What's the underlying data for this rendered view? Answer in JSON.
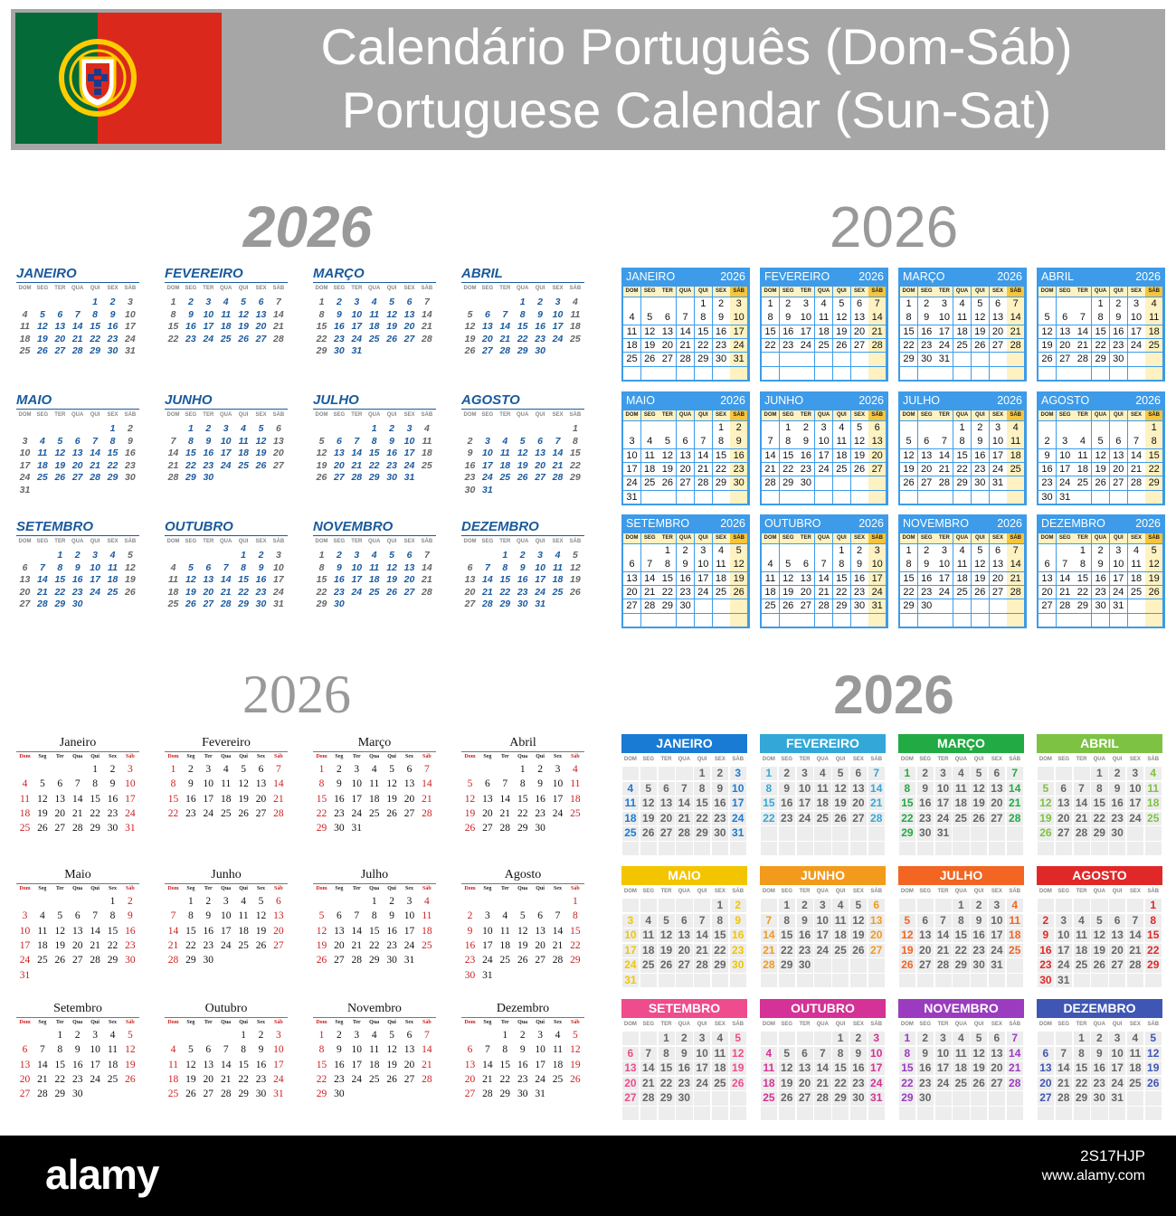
{
  "header": {
    "title_pt": "Calendário Português (Dom-Sáb)",
    "title_en": "Portuguese Calendar (Sun-Sat)"
  },
  "year": "2026",
  "colors": {
    "header_bg": "#a6a6a6",
    "flag_green": "#046a38",
    "flag_red": "#da291c",
    "blue": "#1a5a9e",
    "red": "#cc1f1f",
    "grid_blue": "#3d9be9",
    "grid_yellow": "#fff2c2",
    "grid_sat": "#f7c53b"
  },
  "months_upper": [
    "JANEIRO",
    "FEVEREIRO",
    "MARÇO",
    "ABRIL",
    "MAIO",
    "JUNHO",
    "JULHO",
    "AGOSTO",
    "SETEMBRO",
    "OUTUBRO",
    "NOVEMBRO",
    "DEZEMBRO"
  ],
  "months_title": [
    "Janeiro",
    "Fevereiro",
    "Março",
    "Abril",
    "Maio",
    "Junho",
    "Julho",
    "Agosto",
    "Setembro",
    "Outubro",
    "Novembro",
    "Dezembro"
  ],
  "weekdays_upper": [
    "DOM",
    "SEG",
    "TER",
    "QUA",
    "QUI",
    "SEX",
    "SÁB"
  ],
  "weekdays_title": [
    "Dom",
    "Seg",
    "Ter",
    "Qua",
    "Qui",
    "Sex",
    "Sáb"
  ],
  "first_weekday": [
    4,
    0,
    0,
    3,
    5,
    1,
    3,
    6,
    2,
    4,
    0,
    2
  ],
  "month_lengths": [
    31,
    28,
    31,
    30,
    31,
    30,
    31,
    31,
    30,
    31,
    30,
    31
  ],
  "mini_colors": [
    "#1a7bd4",
    "#33a8d8",
    "#22aa44",
    "#7dc242",
    "#f2c500",
    "#f29a1c",
    "#f26522",
    "#e02828",
    "#ee4c8c",
    "#d43296",
    "#9b3bbf",
    "#3f56b5"
  ],
  "footer": {
    "logo": "alamy",
    "image_id": "2S17HJP",
    "site": "www.alamy.com"
  }
}
